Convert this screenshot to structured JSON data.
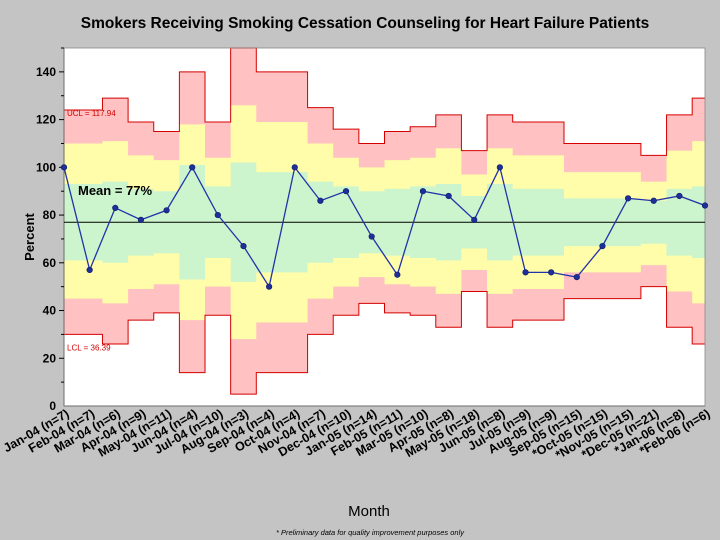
{
  "chart_data": {
    "type": "line",
    "title": "Smokers Receiving Smoking Cessation Counseling for Heart Failure Patients",
    "xlabel": "Month",
    "ylabel": "Percent",
    "ylim": [
      0,
      150
    ],
    "yticks": [
      0,
      20,
      40,
      60,
      80,
      100,
      120,
      140
    ],
    "footnote": "* Preliminary data for quality improvement purposes only",
    "mean": 77,
    "mean_label": "Mean = 77%",
    "ucl_label": "UCL = 117.94",
    "lcl_label": "LCL = 36.39",
    "colors": {
      "background": "#c4c4c4",
      "plot": "#ffffff",
      "outer_zone": "#ffc1c1",
      "middle_zone": "#fffcaa",
      "inner_zone": "#ccf5cd",
      "limit_line": "#d40000",
      "series": "#2233aa",
      "marker": "#1f2f99"
    },
    "categories": [
      "Jan-04 (n=7)",
      "Feb-04 (n=7)",
      "Mar-04 (n=6)",
      "Apr-04 (n=9)",
      "May-04 (n=11)",
      "Jun-04 (n=4)",
      "Jul-04 (n=10)",
      "Aug-04 (n=3)",
      "Sep-04 (n=4)",
      "Oct-04 (n=4)",
      "Nov-04 (n=7)",
      "Dec-04 (n=10)",
      "Jan-05 (n=14)",
      "Feb-05 (n=11)",
      "Mar-05 (n=10)",
      "Apr-05 (n=8)",
      "May-05 (n=18)",
      "Jun-05 (n=8)",
      "Jul-05 (n=9)",
      "Aug-05 (n=9)",
      "Sep-05 (n=15)",
      "*Oct-05 (n=15)",
      "*Nov-05 (n=15)",
      "*Dec-05 (n=21)",
      "*Jan-06 (n=8)",
      "*Feb-06 (n=6)"
    ],
    "series": [
      {
        "name": "Percent",
        "values": [
          100,
          57,
          83,
          78,
          82,
          100,
          80,
          67,
          50,
          100,
          86,
          90,
          71,
          55,
          90,
          88,
          78,
          100,
          56,
          56,
          54,
          67,
          87,
          86,
          88,
          84
        ]
      }
    ],
    "control_limits": {
      "ucl": [
        124,
        124,
        129,
        119,
        115,
        140,
        119,
        150,
        140,
        140,
        125,
        116,
        110,
        115,
        117,
        122,
        107,
        122,
        119,
        119,
        110,
        110,
        110,
        105,
        122,
        129
      ],
      "ucl2": [
        110,
        110,
        111,
        105,
        103,
        118,
        104,
        126,
        119,
        119,
        110,
        104,
        100,
        103,
        104,
        108,
        97,
        108,
        105,
        105,
        98,
        98,
        98,
        94,
        107,
        111
      ],
      "ucl1": [
        93,
        93,
        94,
        91,
        90,
        101,
        92,
        102,
        98,
        98,
        94,
        92,
        90,
        91,
        92,
        93,
        88,
        93,
        91,
        91,
        87,
        87,
        87,
        86,
        91,
        92
      ],
      "lcl1": [
        61,
        61,
        60,
        63,
        64,
        53,
        62,
        52,
        56,
        56,
        60,
        62,
        64,
        63,
        62,
        61,
        66,
        61,
        63,
        63,
        67,
        67,
        67,
        68,
        63,
        62
      ],
      "lcl2": [
        45,
        45,
        43,
        49,
        51,
        36,
        50,
        28,
        35,
        35,
        45,
        50,
        54,
        51,
        50,
        47,
        57,
        47,
        49,
        49,
        56,
        56,
        56,
        59,
        48,
        43
      ],
      "lcl": [
        30,
        30,
        26,
        36,
        39,
        14,
        38,
        5,
        14,
        14,
        30,
        38,
        43,
        39,
        38,
        33,
        48,
        33,
        36,
        36,
        45,
        45,
        45,
        50,
        33,
        26
      ]
    }
  }
}
